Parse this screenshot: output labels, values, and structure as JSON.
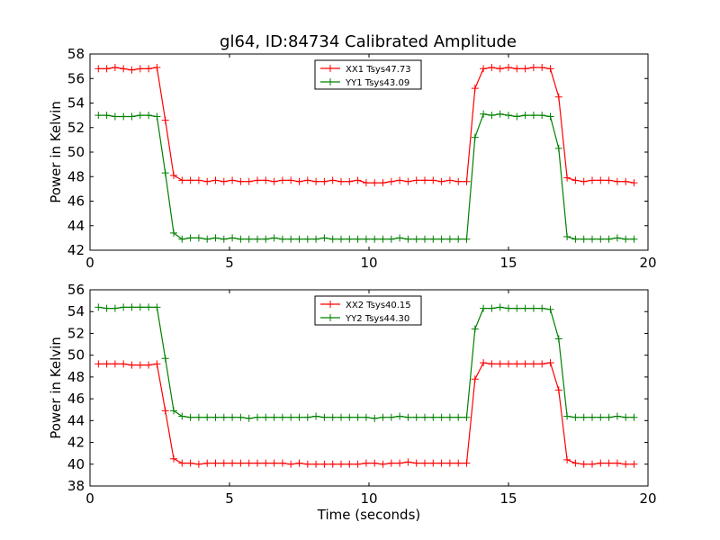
{
  "title": "gl64, ID:84734 Calibrated Amplitude",
  "chart_data": [
    {
      "type": "line",
      "ylabel": "Power in Kelvin",
      "xlabel": "",
      "xlim": [
        0,
        20
      ],
      "ylim": [
        42,
        58
      ],
      "xticks": [
        "0",
        "5",
        "10",
        "15",
        "20"
      ],
      "yticks": [
        "42",
        "44",
        "46",
        "48",
        "50",
        "52",
        "54",
        "56",
        "58"
      ],
      "grid": false,
      "legend_position": "top-center",
      "series": [
        {
          "name": "XX1 Tsys47.73",
          "color": "#ff0000",
          "x": [
            0.3,
            0.6,
            0.9,
            1.2,
            1.5,
            1.8,
            2.1,
            2.4,
            2.7,
            3.0,
            3.3,
            3.6,
            3.9,
            4.2,
            4.5,
            4.8,
            5.1,
            5.4,
            5.7,
            6.0,
            6.3,
            6.6,
            6.9,
            7.2,
            7.5,
            7.8,
            8.1,
            8.4,
            8.7,
            9.0,
            9.3,
            9.6,
            9.9,
            10.2,
            10.5,
            10.8,
            11.1,
            11.4,
            11.7,
            12.0,
            12.3,
            12.6,
            12.9,
            13.2,
            13.5,
            13.8,
            14.1,
            14.4,
            14.7,
            15.0,
            15.3,
            15.6,
            15.9,
            16.2,
            16.5,
            16.8,
            17.1,
            17.4,
            17.7,
            18.0,
            18.3,
            18.6,
            18.9,
            19.2,
            19.5
          ],
          "y": [
            56.8,
            56.8,
            56.9,
            56.8,
            56.7,
            56.8,
            56.8,
            56.9,
            52.6,
            48.1,
            47.7,
            47.7,
            47.7,
            47.6,
            47.7,
            47.6,
            47.7,
            47.6,
            47.6,
            47.7,
            47.7,
            47.6,
            47.7,
            47.7,
            47.6,
            47.7,
            47.6,
            47.6,
            47.7,
            47.6,
            47.6,
            47.7,
            47.5,
            47.5,
            47.5,
            47.6,
            47.7,
            47.6,
            47.7,
            47.7,
            47.7,
            47.6,
            47.7,
            47.6,
            47.6,
            55.2,
            56.8,
            56.9,
            56.8,
            56.9,
            56.8,
            56.8,
            56.9,
            56.9,
            56.8,
            54.5,
            47.9,
            47.7,
            47.6,
            47.7,
            47.7,
            47.7,
            47.6,
            47.6,
            47.5
          ]
        },
        {
          "name": "YY1 Tsys43.09",
          "color": "#008000",
          "x": [
            0.3,
            0.6,
            0.9,
            1.2,
            1.5,
            1.8,
            2.1,
            2.4,
            2.7,
            3.0,
            3.3,
            3.6,
            3.9,
            4.2,
            4.5,
            4.8,
            5.1,
            5.4,
            5.7,
            6.0,
            6.3,
            6.6,
            6.9,
            7.2,
            7.5,
            7.8,
            8.1,
            8.4,
            8.7,
            9.0,
            9.3,
            9.6,
            9.9,
            10.2,
            10.5,
            10.8,
            11.1,
            11.4,
            11.7,
            12.0,
            12.3,
            12.6,
            12.9,
            13.2,
            13.5,
            13.8,
            14.1,
            14.4,
            14.7,
            15.0,
            15.3,
            15.6,
            15.9,
            16.2,
            16.5,
            16.8,
            17.1,
            17.4,
            17.7,
            18.0,
            18.3,
            18.6,
            18.9,
            19.2,
            19.5
          ],
          "y": [
            53.0,
            53.0,
            52.9,
            52.9,
            52.9,
            53.0,
            53.0,
            52.9,
            48.3,
            43.4,
            42.9,
            43.0,
            43.0,
            42.9,
            43.0,
            42.9,
            43.0,
            42.9,
            42.9,
            42.9,
            42.9,
            43.0,
            42.9,
            42.9,
            42.9,
            42.9,
            42.9,
            43.0,
            42.9,
            42.9,
            42.9,
            42.9,
            42.9,
            42.9,
            42.9,
            42.9,
            43.0,
            42.9,
            42.9,
            42.9,
            42.9,
            42.9,
            42.9,
            42.9,
            42.9,
            51.2,
            53.1,
            53.0,
            53.1,
            53.0,
            52.9,
            53.0,
            53.0,
            53.0,
            52.9,
            50.3,
            43.1,
            42.9,
            42.9,
            42.9,
            42.9,
            42.9,
            43.0,
            42.9,
            42.9
          ]
        }
      ]
    },
    {
      "type": "line",
      "ylabel": "Power in Kelvin",
      "xlabel": "Time (seconds)",
      "xlim": [
        0,
        20
      ],
      "ylim": [
        38,
        56
      ],
      "xticks": [
        "0",
        "5",
        "10",
        "15",
        "20"
      ],
      "yticks": [
        "38",
        "40",
        "42",
        "44",
        "46",
        "48",
        "50",
        "52",
        "54",
        "56"
      ],
      "grid": false,
      "legend_position": "top-center",
      "series": [
        {
          "name": "XX2 Tsys40.15",
          "color": "#ff0000",
          "x": [
            0.3,
            0.6,
            0.9,
            1.2,
            1.5,
            1.8,
            2.1,
            2.4,
            2.7,
            3.0,
            3.3,
            3.6,
            3.9,
            4.2,
            4.5,
            4.8,
            5.1,
            5.4,
            5.7,
            6.0,
            6.3,
            6.6,
            6.9,
            7.2,
            7.5,
            7.8,
            8.1,
            8.4,
            8.7,
            9.0,
            9.3,
            9.6,
            9.9,
            10.2,
            10.5,
            10.8,
            11.1,
            11.4,
            11.7,
            12.0,
            12.3,
            12.6,
            12.9,
            13.2,
            13.5,
            13.8,
            14.1,
            14.4,
            14.7,
            15.0,
            15.3,
            15.6,
            15.9,
            16.2,
            16.5,
            16.8,
            17.1,
            17.4,
            17.7,
            18.0,
            18.3,
            18.6,
            18.9,
            19.2,
            19.5
          ],
          "y": [
            49.2,
            49.2,
            49.2,
            49.2,
            49.1,
            49.1,
            49.1,
            49.2,
            44.9,
            40.5,
            40.1,
            40.1,
            40.0,
            40.1,
            40.1,
            40.1,
            40.1,
            40.1,
            40.1,
            40.1,
            40.1,
            40.1,
            40.1,
            40.0,
            40.1,
            40.0,
            40.0,
            40.0,
            40.0,
            40.0,
            40.0,
            40.0,
            40.1,
            40.1,
            40.0,
            40.1,
            40.1,
            40.2,
            40.1,
            40.1,
            40.1,
            40.1,
            40.1,
            40.1,
            40.1,
            47.8,
            49.3,
            49.2,
            49.2,
            49.2,
            49.2,
            49.2,
            49.2,
            49.2,
            49.3,
            46.8,
            40.4,
            40.1,
            40.0,
            40.0,
            40.1,
            40.1,
            40.1,
            40.0,
            40.0
          ]
        },
        {
          "name": "YY2 Tsys44.30",
          "color": "#008000",
          "x": [
            0.3,
            0.6,
            0.9,
            1.2,
            1.5,
            1.8,
            2.1,
            2.4,
            2.7,
            3.0,
            3.3,
            3.6,
            3.9,
            4.2,
            4.5,
            4.8,
            5.1,
            5.4,
            5.7,
            6.0,
            6.3,
            6.6,
            6.9,
            7.2,
            7.5,
            7.8,
            8.1,
            8.4,
            8.7,
            9.0,
            9.3,
            9.6,
            9.9,
            10.2,
            10.5,
            10.8,
            11.1,
            11.4,
            11.7,
            12.0,
            12.3,
            12.6,
            12.9,
            13.2,
            13.5,
            13.8,
            14.1,
            14.4,
            14.7,
            15.0,
            15.3,
            15.6,
            15.9,
            16.2,
            16.5,
            16.8,
            17.1,
            17.4,
            17.7,
            18.0,
            18.3,
            18.6,
            18.9,
            19.2,
            19.5
          ],
          "y": [
            54.4,
            54.3,
            54.3,
            54.4,
            54.4,
            54.4,
            54.4,
            54.4,
            49.7,
            44.9,
            44.4,
            44.3,
            44.3,
            44.3,
            44.3,
            44.3,
            44.3,
            44.3,
            44.2,
            44.3,
            44.3,
            44.3,
            44.3,
            44.3,
            44.3,
            44.3,
            44.4,
            44.3,
            44.3,
            44.3,
            44.3,
            44.3,
            44.3,
            44.2,
            44.3,
            44.3,
            44.4,
            44.3,
            44.3,
            44.3,
            44.3,
            44.3,
            44.3,
            44.3,
            44.3,
            52.4,
            54.3,
            54.3,
            54.4,
            54.3,
            54.3,
            54.3,
            54.3,
            54.3,
            54.2,
            51.5,
            44.4,
            44.3,
            44.3,
            44.3,
            44.3,
            44.3,
            44.4,
            44.3,
            44.3
          ]
        }
      ]
    }
  ]
}
